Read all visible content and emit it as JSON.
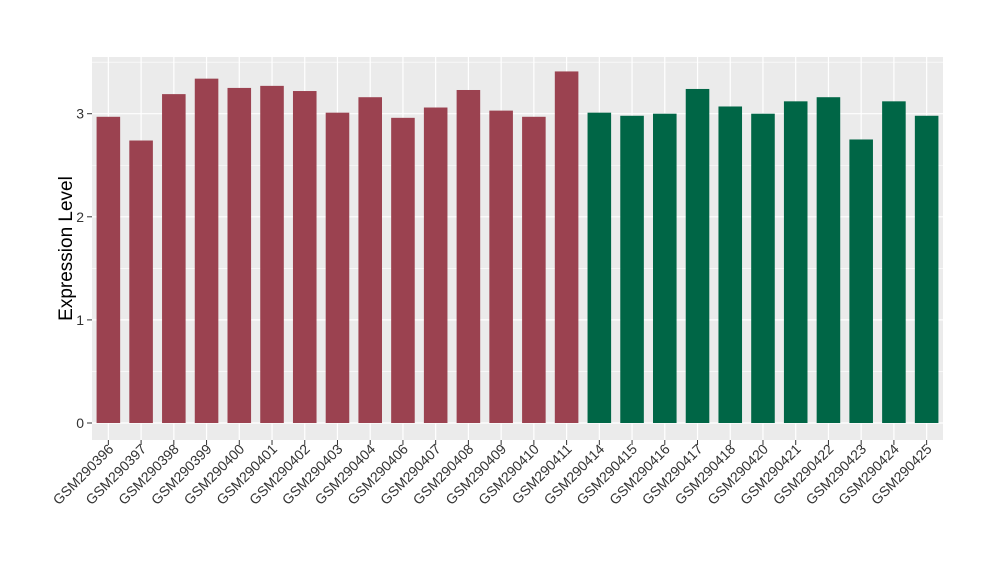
{
  "chart_data": {
    "type": "bar",
    "title": "",
    "xlabel": "",
    "ylabel": "Expression Level",
    "ylim": [
      0,
      3.55
    ],
    "yticks": [
      0,
      1,
      2,
      3
    ],
    "grid": true,
    "legend": "none",
    "background_color": "#ebebeb",
    "grid_color": "#ffffff",
    "categories": [
      "GSM290396",
      "GSM290397",
      "GSM290398",
      "GSM290399",
      "GSM290400",
      "GSM290401",
      "GSM290402",
      "GSM290403",
      "GSM290404",
      "GSM290406",
      "GSM290407",
      "GSM290408",
      "GSM290409",
      "GSM290410",
      "GSM290411",
      "GSM290414",
      "GSM290415",
      "GSM290416",
      "GSM290417",
      "GSM290418",
      "GSM290420",
      "GSM290421",
      "GSM290422",
      "GSM290423",
      "GSM290424",
      "GSM290425"
    ],
    "values": [
      2.97,
      2.74,
      3.19,
      3.34,
      3.25,
      3.27,
      3.22,
      3.01,
      3.16,
      2.96,
      3.06,
      3.23,
      3.03,
      2.97,
      3.41,
      3.01,
      2.98,
      3.0,
      3.24,
      3.07,
      3.0,
      3.12,
      3.16,
      2.75,
      3.12,
      2.98
    ],
    "groups": [
      1,
      1,
      1,
      1,
      1,
      1,
      1,
      1,
      1,
      1,
      1,
      1,
      1,
      1,
      1,
      2,
      2,
      2,
      2,
      2,
      2,
      2,
      2,
      2,
      2,
      2
    ],
    "group_colors": {
      "1": "#9b4250",
      "2": "#006646"
    }
  }
}
